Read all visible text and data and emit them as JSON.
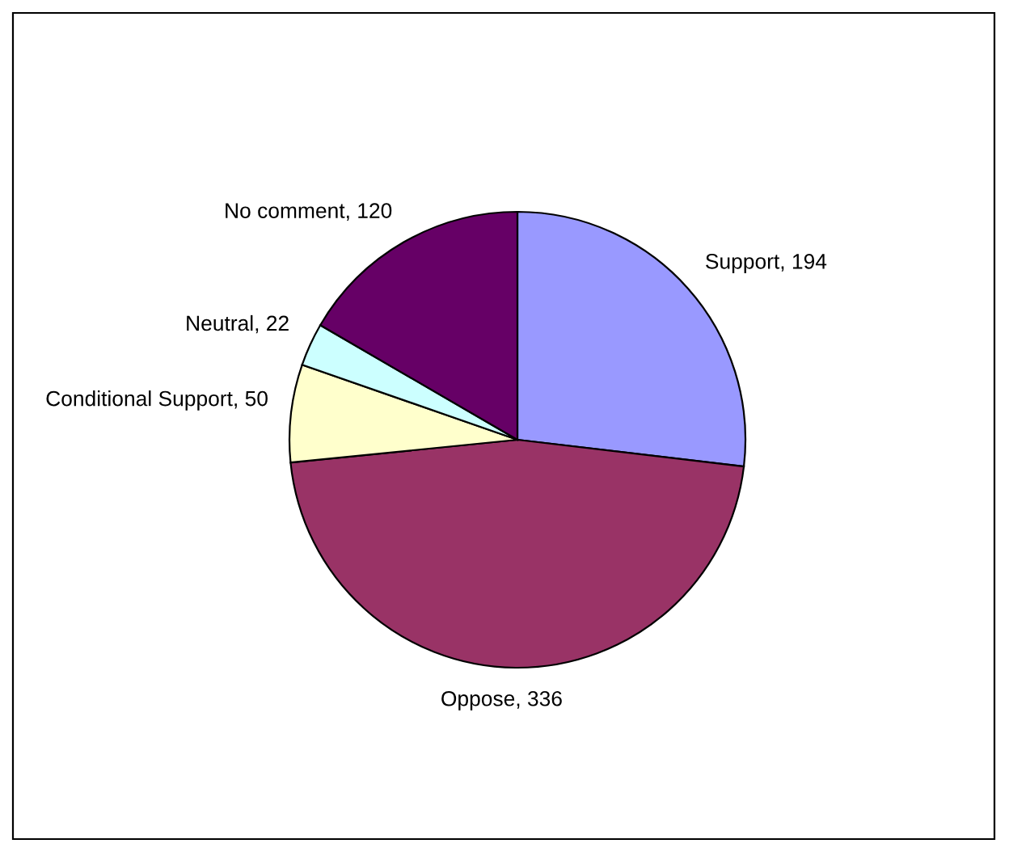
{
  "chart_data": {
    "type": "pie",
    "categories": [
      "Support",
      "Oppose",
      "Conditional Support",
      "Neutral",
      "No comment"
    ],
    "values": [
      194,
      336,
      50,
      22,
      120
    ],
    "colors": [
      "#9999ff",
      "#993366",
      "#ffffcc",
      "#ccffff",
      "#660066"
    ],
    "value_labels": [
      ", 194",
      ", 336",
      ", 50",
      ", 22",
      ", 120"
    ],
    "legend": false
  }
}
